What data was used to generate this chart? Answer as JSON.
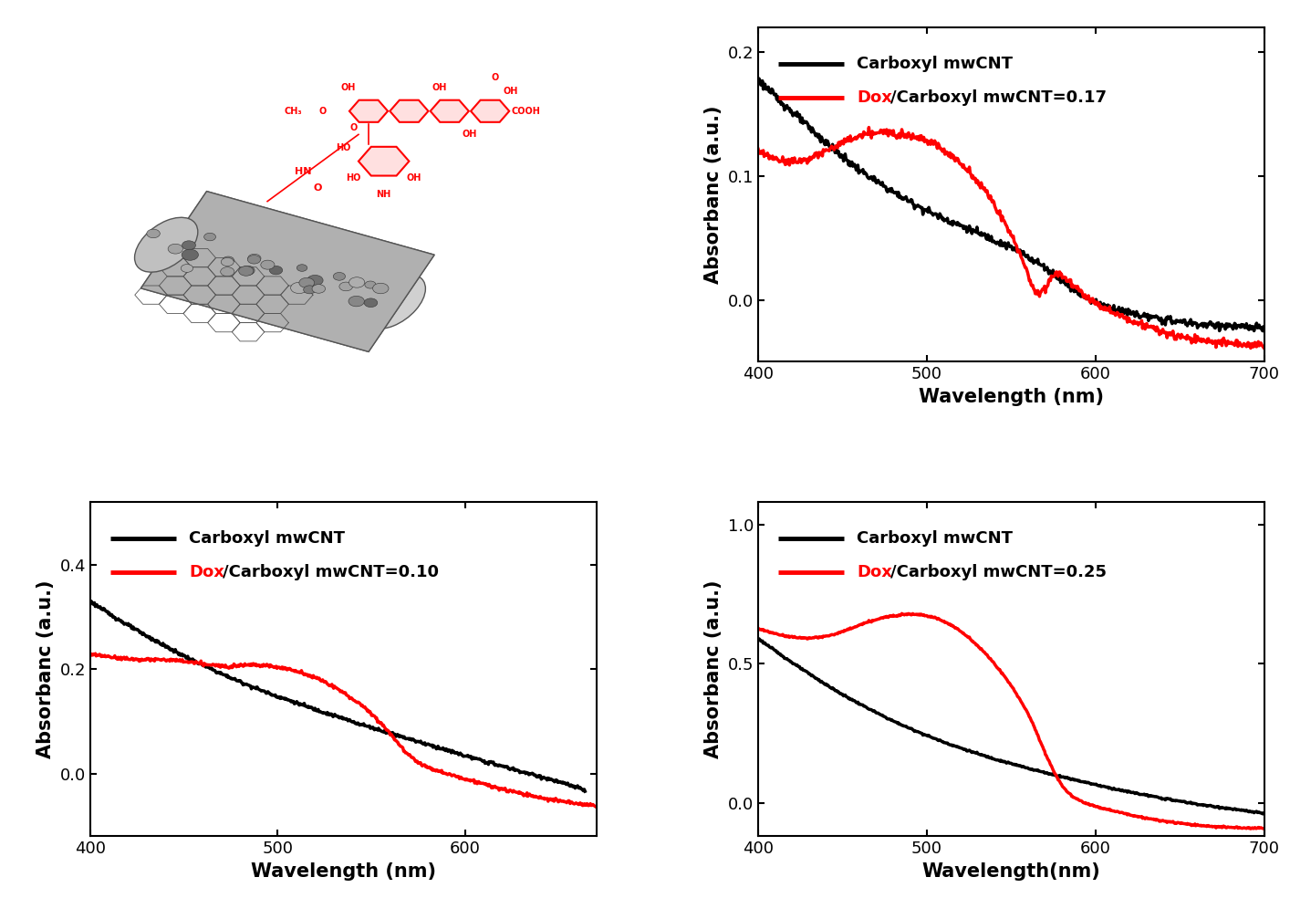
{
  "panel_tr": {
    "legend1": "Carboxyl mwCNT",
    "legend2_prefix": "Dox",
    "legend2_suffix": "/Carboxyl mwCNT=0.17",
    "xlabel": "Wavelength (nm)",
    "ylabel": "Absorbanc (a.u.)",
    "xlim": [
      400,
      700
    ],
    "ylim": [
      -0.05,
      0.22
    ],
    "yticks": [
      0.0,
      0.1,
      0.2
    ],
    "xticks": [
      400,
      500,
      600,
      700
    ],
    "black_x": [
      400,
      412,
      424,
      436,
      448,
      460,
      472,
      484,
      496,
      508,
      520,
      532,
      544,
      556,
      568,
      580,
      592,
      604,
      616,
      628,
      640,
      652,
      664,
      676,
      688,
      700
    ],
    "black_y": [
      0.178,
      0.162,
      0.147,
      0.132,
      0.118,
      0.105,
      0.094,
      0.084,
      0.075,
      0.067,
      0.06,
      0.053,
      0.046,
      0.038,
      0.028,
      0.016,
      0.004,
      -0.004,
      -0.009,
      -0.013,
      -0.016,
      -0.018,
      -0.02,
      -0.021,
      -0.022,
      -0.023
    ],
    "red_x": [
      400,
      410,
      420,
      430,
      440,
      450,
      460,
      470,
      480,
      490,
      500,
      510,
      520,
      530,
      540,
      550,
      558,
      562,
      566,
      570,
      574,
      578,
      582,
      590,
      600,
      610,
      620,
      630,
      640,
      650,
      660,
      670,
      680,
      690,
      700
    ],
    "red_y": [
      0.12,
      0.114,
      0.112,
      0.114,
      0.12,
      0.127,
      0.132,
      0.135,
      0.135,
      0.133,
      0.129,
      0.121,
      0.11,
      0.096,
      0.077,
      0.052,
      0.028,
      0.012,
      0.006,
      0.01,
      0.018,
      0.022,
      0.018,
      0.008,
      -0.002,
      -0.01,
      -0.016,
      -0.021,
      -0.026,
      -0.03,
      -0.032,
      -0.034,
      -0.035,
      -0.036,
      -0.037
    ]
  },
  "panel_bl": {
    "legend1": "Carboxyl mwCNT",
    "legend2_prefix": "Dox",
    "legend2_suffix": "/Carboxyl mwCNT=0.10",
    "xlabel": "Wavelength (nm)",
    "ylabel": "Absorbanc (a.u.)",
    "xlim": [
      400,
      670
    ],
    "ylim": [
      -0.12,
      0.52
    ],
    "yticks": [
      0.0,
      0.2,
      0.4
    ],
    "xticks": [
      400,
      500,
      600
    ],
    "black_x": [
      400,
      412,
      424,
      436,
      448,
      460,
      472,
      484,
      496,
      508,
      520,
      532,
      544,
      556,
      568,
      580,
      592,
      604,
      616,
      628,
      640,
      652,
      664
    ],
    "black_y": [
      0.33,
      0.302,
      0.276,
      0.252,
      0.229,
      0.208,
      0.188,
      0.17,
      0.153,
      0.138,
      0.123,
      0.109,
      0.095,
      0.082,
      0.069,
      0.056,
      0.043,
      0.03,
      0.018,
      0.006,
      -0.006,
      -0.018,
      -0.032
    ],
    "red_x": [
      400,
      410,
      420,
      430,
      440,
      450,
      460,
      467,
      472,
      478,
      483,
      490,
      500,
      510,
      520,
      530,
      540,
      550,
      558,
      564,
      568,
      572,
      576,
      582,
      590,
      600,
      610,
      620,
      630,
      640,
      650,
      660,
      670
    ],
    "red_y": [
      0.228,
      0.224,
      0.22,
      0.218,
      0.218,
      0.215,
      0.21,
      0.207,
      0.206,
      0.207,
      0.209,
      0.208,
      0.204,
      0.196,
      0.184,
      0.166,
      0.143,
      0.115,
      0.085,
      0.06,
      0.042,
      0.03,
      0.02,
      0.01,
      0.0,
      -0.01,
      -0.02,
      -0.03,
      -0.038,
      -0.046,
      -0.052,
      -0.057,
      -0.062
    ]
  },
  "panel_br": {
    "legend1": "Carboxyl mwCNT",
    "legend2_prefix": "Dox",
    "legend2_suffix": "/Carboxyl mwCNT=0.25",
    "xlabel": "Wavelength(nm)",
    "ylabel": "Absorbanc (a.u.)",
    "xlim": [
      400,
      700
    ],
    "ylim": [
      -0.12,
      1.08
    ],
    "yticks": [
      0.0,
      0.5,
      1.0
    ],
    "xticks": [
      400,
      500,
      600,
      700
    ],
    "black_x": [
      400,
      412,
      424,
      436,
      448,
      460,
      472,
      484,
      496,
      508,
      520,
      532,
      544,
      556,
      568,
      580,
      592,
      604,
      616,
      628,
      640,
      652,
      664,
      676,
      688,
      700
    ],
    "black_y": [
      0.59,
      0.538,
      0.488,
      0.441,
      0.396,
      0.356,
      0.318,
      0.283,
      0.252,
      0.223,
      0.197,
      0.173,
      0.151,
      0.131,
      0.112,
      0.094,
      0.077,
      0.06,
      0.044,
      0.03,
      0.016,
      0.004,
      -0.008,
      -0.018,
      -0.028,
      -0.038
    ],
    "red_x": [
      400,
      410,
      420,
      430,
      440,
      450,
      460,
      470,
      480,
      490,
      500,
      510,
      520,
      530,
      540,
      550,
      558,
      564,
      568,
      572,
      576,
      580,
      586,
      592,
      600,
      610,
      620,
      630,
      640,
      650,
      660,
      670,
      680,
      690,
      700
    ],
    "red_y": [
      0.625,
      0.608,
      0.596,
      0.592,
      0.598,
      0.615,
      0.638,
      0.658,
      0.672,
      0.678,
      0.672,
      0.652,
      0.616,
      0.565,
      0.5,
      0.42,
      0.342,
      0.268,
      0.21,
      0.155,
      0.105,
      0.065,
      0.025,
      0.005,
      -0.012,
      -0.028,
      -0.042,
      -0.055,
      -0.065,
      -0.073,
      -0.08,
      -0.085,
      -0.088,
      -0.09,
      -0.091
    ]
  },
  "line_width": 2.5,
  "font_size_label": 15,
  "font_size_tick": 13,
  "font_size_legend": 13
}
